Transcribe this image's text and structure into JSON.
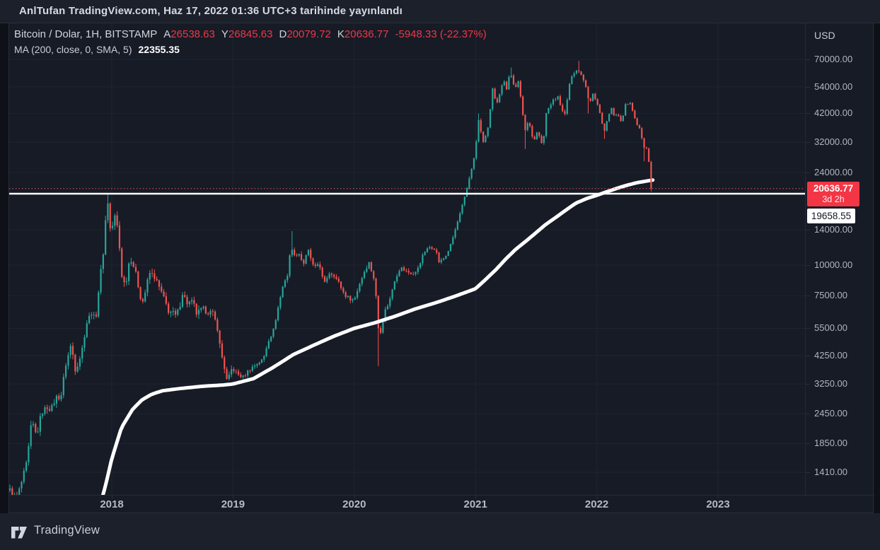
{
  "attribution": {
    "text": "AnlTufan TradingView.com, Haz 17, 2022 01:36 UTC+3 tarihinde yayınlandı"
  },
  "legend": {
    "title": "Bitcoin / Dolar, 1H, BITSTAMP",
    "ohlc": [
      {
        "label": "A",
        "value": "26538.63"
      },
      {
        "label": "Y",
        "value": "26845.63"
      },
      {
        "label": "D",
        "value": "20079.72"
      },
      {
        "label": "K",
        "value": "20636.77"
      }
    ],
    "change": "-5948.33 (-22.37%)",
    "ma_label": "MA (200, close, 0, SMA, 5)",
    "ma_value": "22355.35"
  },
  "axis": {
    "currency": "USD"
  },
  "badges": {
    "price": "20636.77",
    "countdown": "3d 2h",
    "hline": "19658.55"
  },
  "footer": {
    "brand": "TradingView"
  },
  "colors": {
    "background": "#161b26",
    "grid": "#1f2432",
    "up": "#26a69a",
    "down": "#ef5350",
    "ma_line": "#ffffff",
    "price_line": "#ef5350",
    "hline": "#ffffff",
    "badge_red": "#f23645",
    "badge_white": "#ffffff"
  },
  "chart_data": {
    "type": "candlestick",
    "title": "Bitcoin / Dolar",
    "interval": "1H",
    "exchange": "BITSTAMP",
    "currency": "USD",
    "log_scale": true,
    "grid": true,
    "x_labels": [
      "2018",
      "2019",
      "2020",
      "2021",
      "2022",
      "2023"
    ],
    "y_ticks": [
      70000,
      54000,
      42000,
      32000,
      24000,
      14000,
      10000,
      7500,
      5500,
      4250,
      3250,
      2450,
      1850,
      1410
    ],
    "x_range_years": [
      2017.16,
      2023.7
    ],
    "last_bar": {
      "open": 26538.63,
      "high": 26845.63,
      "low": 20079.72,
      "close": 20636.77,
      "change": -5948.33,
      "change_pct": -22.37
    },
    "price_line": 20636.77,
    "countdown": "3d 2h",
    "horizontal_line": 19658.55,
    "ma200": {
      "label": "MA (200, close, 0, SMA, 5)",
      "value": 22355.35,
      "points": [
        [
          2017.9,
          1020
        ],
        [
          2017.95,
          1250
        ],
        [
          2018.0,
          1600
        ],
        [
          2018.08,
          2150
        ],
        [
          2018.17,
          2550
        ],
        [
          2018.25,
          2800
        ],
        [
          2018.33,
          2950
        ],
        [
          2018.42,
          3050
        ],
        [
          2018.58,
          3120
        ],
        [
          2018.75,
          3180
        ],
        [
          2018.92,
          3220
        ],
        [
          2019.0,
          3250
        ],
        [
          2019.17,
          3420
        ],
        [
          2019.33,
          3800
        ],
        [
          2019.5,
          4300
        ],
        [
          2019.67,
          4700
        ],
        [
          2019.83,
          5100
        ],
        [
          2020.0,
          5500
        ],
        [
          2020.17,
          5800
        ],
        [
          2020.33,
          6150
        ],
        [
          2020.5,
          6600
        ],
        [
          2020.67,
          7000
        ],
        [
          2020.83,
          7450
        ],
        [
          2021.0,
          8000
        ],
        [
          2021.08,
          8700
        ],
        [
          2021.17,
          9600
        ],
        [
          2021.25,
          10600
        ],
        [
          2021.33,
          11600
        ],
        [
          2021.42,
          12600
        ],
        [
          2021.5,
          13600
        ],
        [
          2021.58,
          14700
        ],
        [
          2021.67,
          15800
        ],
        [
          2021.75,
          16900
        ],
        [
          2021.83,
          18000
        ],
        [
          2021.92,
          18800
        ],
        [
          2022.0,
          19350
        ],
        [
          2022.08,
          20000
        ],
        [
          2022.17,
          20700
        ],
        [
          2022.25,
          21300
        ],
        [
          2022.33,
          21800
        ],
        [
          2022.42,
          22200
        ],
        [
          2022.462,
          22355.35
        ]
      ]
    },
    "weekly_closes": [
      [
        2017.16,
        1190
      ],
      [
        2017.21,
        1080
      ],
      [
        2017.25,
        1250
      ],
      [
        2017.3,
        1550
      ],
      [
        2017.34,
        2300
      ],
      [
        2017.38,
        1980
      ],
      [
        2017.42,
        2480
      ],
      [
        2017.47,
        2620
      ],
      [
        2017.5,
        2550
      ],
      [
        2017.54,
        2870
      ],
      [
        2017.58,
        2875
      ],
      [
        2017.62,
        3900
      ],
      [
        2017.665,
        4735
      ],
      [
        2017.7,
        3710
      ],
      [
        2017.75,
        4360
      ],
      [
        2017.79,
        5750
      ],
      [
        2017.835,
        6450
      ],
      [
        2017.865,
        5870
      ],
      [
        2017.895,
        8200
      ],
      [
        2017.915,
        9900
      ],
      [
        2017.935,
        11900
      ],
      [
        2017.955,
        17200
      ],
      [
        2017.965,
        19100
      ],
      [
        2017.98,
        14300
      ],
      [
        2018.0,
        13850
      ],
      [
        2018.02,
        16200
      ],
      [
        2018.05,
        14100
      ],
      [
        2018.09,
        8300
      ],
      [
        2018.12,
        8700
      ],
      [
        2018.15,
        10900
      ],
      [
        2018.19,
        9600
      ],
      [
        2018.25,
        6930
      ],
      [
        2018.28,
        7900
      ],
      [
        2018.31,
        9300
      ],
      [
        2018.35,
        9000
      ],
      [
        2018.42,
        7500
      ],
      [
        2018.47,
        6450
      ],
      [
        2018.5,
        6400
      ],
      [
        2018.53,
        6150
      ],
      [
        2018.56,
        6750
      ],
      [
        2018.58,
        7750
      ],
      [
        2018.62,
        7000
      ],
      [
        2018.67,
        7030
      ],
      [
        2018.7,
        6300
      ],
      [
        2018.75,
        6600
      ],
      [
        2018.79,
        6450
      ],
      [
        2018.83,
        6350
      ],
      [
        2018.87,
        5600
      ],
      [
        2018.9,
        4350
      ],
      [
        2018.92,
        4020
      ],
      [
        2018.955,
        3230
      ],
      [
        2018.98,
        3700
      ],
      [
        2019.0,
        3740
      ],
      [
        2019.04,
        3560
      ],
      [
        2019.08,
        3460
      ],
      [
        2019.13,
        3700
      ],
      [
        2019.17,
        3850
      ],
      [
        2019.21,
        3980
      ],
      [
        2019.25,
        4100
      ],
      [
        2019.29,
        4900
      ],
      [
        2019.33,
        5320
      ],
      [
        2019.38,
        7000
      ],
      [
        2019.42,
        8560
      ],
      [
        2019.45,
        9100
      ],
      [
        2019.48,
        12300
      ],
      [
        2019.5,
        10800
      ],
      [
        2019.54,
        11300
      ],
      [
        2019.58,
        10080
      ],
      [
        2019.62,
        11500
      ],
      [
        2019.67,
        9600
      ],
      [
        2019.71,
        10300
      ],
      [
        2019.75,
        8280
      ],
      [
        2019.79,
        9300
      ],
      [
        2019.83,
        9150
      ],
      [
        2019.87,
        8500
      ],
      [
        2019.92,
        7550
      ],
      [
        2019.96,
        7300
      ],
      [
        2020.0,
        7190
      ],
      [
        2020.04,
        8300
      ],
      [
        2020.08,
        9350
      ],
      [
        2020.12,
        10270
      ],
      [
        2020.17,
        8550
      ],
      [
        2020.205,
        5000
      ],
      [
        2020.25,
        6440
      ],
      [
        2020.29,
        7100
      ],
      [
        2020.33,
        8620
      ],
      [
        2020.38,
        9800
      ],
      [
        2020.42,
        9450
      ],
      [
        2020.46,
        9300
      ],
      [
        2020.5,
        9140
      ],
      [
        2020.54,
        10200
      ],
      [
        2020.58,
        11350
      ],
      [
        2020.625,
        11900
      ],
      [
        2020.67,
        11650
      ],
      [
        2020.7,
        10250
      ],
      [
        2020.75,
        10780
      ],
      [
        2020.79,
        11900
      ],
      [
        2020.83,
        13800
      ],
      [
        2020.87,
        16100
      ],
      [
        2020.92,
        19700
      ],
      [
        2020.96,
        24200
      ],
      [
        2021.0,
        29000
      ],
      [
        2021.02,
        40600
      ],
      [
        2021.06,
        32100
      ],
      [
        2021.08,
        33100
      ],
      [
        2021.11,
        38300
      ],
      [
        2021.13,
        48000
      ],
      [
        2021.15,
        57400
      ],
      [
        2021.165,
        43700
      ],
      [
        2021.2,
        50300
      ],
      [
        2021.23,
        58800
      ],
      [
        2021.26,
        52300
      ],
      [
        2021.285,
        63500
      ],
      [
        2021.31,
        56200
      ],
      [
        2021.33,
        53300
      ],
      [
        2021.35,
        57750
      ],
      [
        2021.38,
        46700
      ],
      [
        2021.405,
        34700
      ],
      [
        2021.42,
        37300
      ],
      [
        2021.44,
        39200
      ],
      [
        2021.46,
        35600
      ],
      [
        2021.48,
        31800
      ],
      [
        2021.5,
        35000
      ],
      [
        2021.53,
        33800
      ],
      [
        2021.555,
        30800
      ],
      [
        2021.58,
        41500
      ],
      [
        2021.61,
        44600
      ],
      [
        2021.625,
        46300
      ],
      [
        2021.65,
        48900
      ],
      [
        2021.67,
        47100
      ],
      [
        2021.685,
        51800
      ],
      [
        2021.7,
        44900
      ],
      [
        2021.72,
        42800
      ],
      [
        2021.74,
        41500
      ],
      [
        2021.77,
        54000
      ],
      [
        2021.8,
        60900
      ],
      [
        2021.82,
        61300
      ],
      [
        2021.845,
        64400
      ],
      [
        2021.86,
        61400
      ],
      [
        2021.88,
        58700
      ],
      [
        2021.9,
        57000
      ],
      [
        2021.925,
        49200
      ],
      [
        2021.95,
        46900
      ],
      [
        2021.97,
        50800
      ],
      [
        2022.0,
        46200
      ],
      [
        2022.03,
        41800
      ],
      [
        2022.06,
        35100
      ],
      [
        2022.08,
        38480
      ],
      [
        2022.1,
        41700
      ],
      [
        2022.12,
        44500
      ],
      [
        2022.15,
        40100
      ],
      [
        2022.17,
        43200
      ],
      [
        2022.19,
        39000
      ],
      [
        2022.21,
        39400
      ],
      [
        2022.24,
        46600
      ],
      [
        2022.25,
        45540
      ],
      [
        2022.28,
        46400
      ],
      [
        2022.3,
        42300
      ],
      [
        2022.33,
        37650
      ],
      [
        2022.36,
        36000
      ],
      [
        2022.385,
        30100
      ],
      [
        2022.4,
        30300
      ],
      [
        2022.42,
        29500
      ],
      [
        2022.44,
        31790
      ],
      [
        2022.45,
        29000
      ],
      [
        2022.457,
        26600
      ],
      [
        2022.462,
        20636.77
      ]
    ],
    "wick_overrides": [
      {
        "t": 2017.965,
        "high": 19798
      },
      {
        "t": 2019.48,
        "high": 13800
      },
      {
        "t": 2020.205,
        "low": 3850
      },
      {
        "t": 2021.02,
        "high": 41950
      },
      {
        "t": 2021.285,
        "high": 64800
      },
      {
        "t": 2021.405,
        "low": 30000
      },
      {
        "t": 2021.845,
        "high": 69000
      },
      {
        "t": 2021.925,
        "low": 42000
      },
      {
        "t": 2022.06,
        "low": 33000
      },
      {
        "t": 2022.385,
        "low": 26700
      }
    ]
  }
}
